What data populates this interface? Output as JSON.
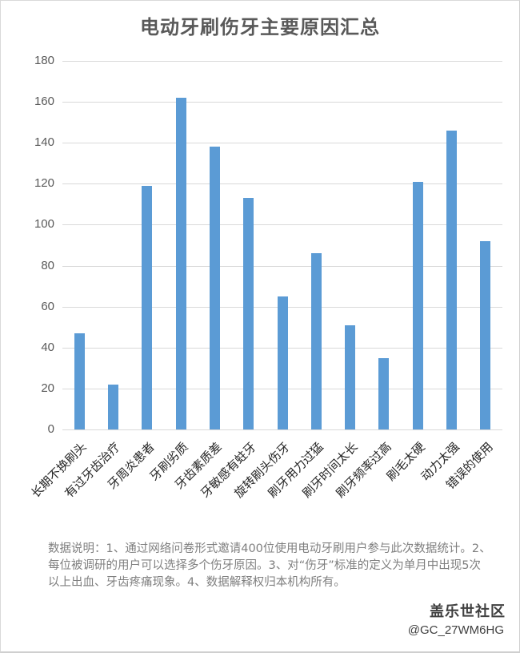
{
  "chart_data": {
    "type": "bar",
    "title": "电动牙刷伤牙主要原因汇总",
    "xlabel": "",
    "ylabel": "",
    "ylim": [
      0,
      180
    ],
    "yticks": [
      0,
      20,
      40,
      60,
      80,
      100,
      120,
      140,
      160,
      180
    ],
    "grid": true,
    "legend": null,
    "bar_color": "#5b9bd5",
    "categories": [
      "长期不换刷头",
      "有过牙齿治疗",
      "牙周炎患者",
      "牙刷劣质",
      "牙齿素质差",
      "牙敏感有蛀牙",
      "旋转刷头伤牙",
      "刷牙用力过猛",
      "刷牙时间太长",
      "刷牙频率过高",
      "刷毛太硬",
      "动力太强",
      "错误的使用"
    ],
    "values": [
      47,
      22,
      119,
      162,
      138,
      113,
      65,
      86,
      51,
      35,
      121,
      146,
      92
    ]
  },
  "chart": {
    "title": "电动牙刷伤牙主要原因汇总",
    "yticks": [
      "0",
      "20",
      "40",
      "60",
      "80",
      "100",
      "120",
      "140",
      "160",
      "180"
    ],
    "categories": [
      "长期不换刷头",
      "有过牙齿治疗",
      "牙周炎患者",
      "牙刷劣质",
      "牙齿素质差",
      "牙敏感有蛀牙",
      "旋转刷头伤牙",
      "刷牙用力过猛",
      "刷牙时间太长",
      "刷牙频率过高",
      "刷毛太硬",
      "动力太强",
      "错误的使用"
    ]
  },
  "footnote": "数据说明：1、通过网络问卷形式邀请400位使用电动牙刷用户参与此次数据统计。2、每位被调研的用户可以选择多个伤牙原因。3、对“伤牙”标准的定义为单月中出现5次以上出血、牙齿疼痛现象。4、数据解释权归本机构所有。",
  "watermark": {
    "brand": "盖乐世社区",
    "handle": "@GC_27WM6HG"
  }
}
